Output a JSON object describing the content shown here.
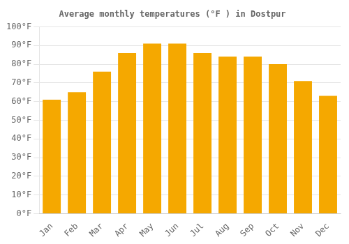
{
  "chart_data": {
    "type": "bar",
    "title": "Average monthly temperatures (°F ) in Dostpur",
    "categories": [
      "Jan",
      "Feb",
      "Mar",
      "Apr",
      "May",
      "Jun",
      "Jul",
      "Aug",
      "Sep",
      "Oct",
      "Nov",
      "Dec"
    ],
    "values": [
      61,
      65,
      76,
      86,
      91,
      91,
      86,
      84,
      84,
      80,
      71,
      63
    ],
    "color": "#F5A800",
    "ylim": [
      0,
      100
    ],
    "yticks": [
      {
        "value": 0,
        "label": "0°F"
      },
      {
        "value": 10,
        "label": "10°F"
      },
      {
        "value": 20,
        "label": "20°F"
      },
      {
        "value": 30,
        "label": "30°F"
      },
      {
        "value": 40,
        "label": "40°F"
      },
      {
        "value": 50,
        "label": "50°F"
      },
      {
        "value": 60,
        "label": "60°F"
      },
      {
        "value": 70,
        "label": "70°F"
      },
      {
        "value": 80,
        "label": "80°F"
      },
      {
        "value": 90,
        "label": "90°F"
      },
      {
        "value": 100,
        "label": "100°F"
      }
    ],
    "grid": true
  }
}
